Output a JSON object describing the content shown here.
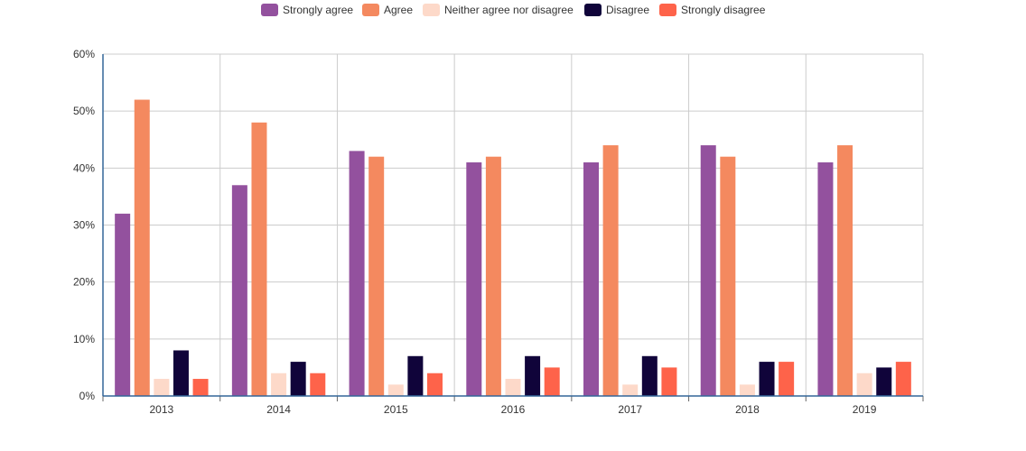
{
  "chart_data": {
    "type": "bar",
    "categories": [
      "2013",
      "2014",
      "2015",
      "2016",
      "2017",
      "2018",
      "2019"
    ],
    "series": [
      {
        "name": "Strongly agree",
        "color": "#93519e",
        "values": [
          32,
          37,
          43,
          41,
          41,
          44,
          41
        ]
      },
      {
        "name": "Agree",
        "color": "#f4895f",
        "values": [
          52,
          48,
          42,
          42,
          44,
          42,
          44
        ]
      },
      {
        "name": "Neither agree nor disagree",
        "color": "#fdd9c9",
        "values": [
          3,
          4,
          2,
          3,
          2,
          2,
          4
        ]
      },
      {
        "name": "Disagree",
        "color": "#10043a",
        "values": [
          8,
          6,
          7,
          7,
          7,
          6,
          5
        ]
      },
      {
        "name": "Strongly disagree",
        "color": "#fe634a",
        "values": [
          3,
          4,
          4,
          5,
          5,
          6,
          6
        ]
      }
    ],
    "y_ticks": [
      "0%",
      "10%",
      "20%",
      "30%",
      "40%",
      "50%",
      "60%"
    ],
    "ylim": [
      0,
      60
    ],
    "unit": "%",
    "grid": true,
    "legend_position": "top-center",
    "axis_color": "#336699",
    "grid_color": "#cccccc"
  }
}
